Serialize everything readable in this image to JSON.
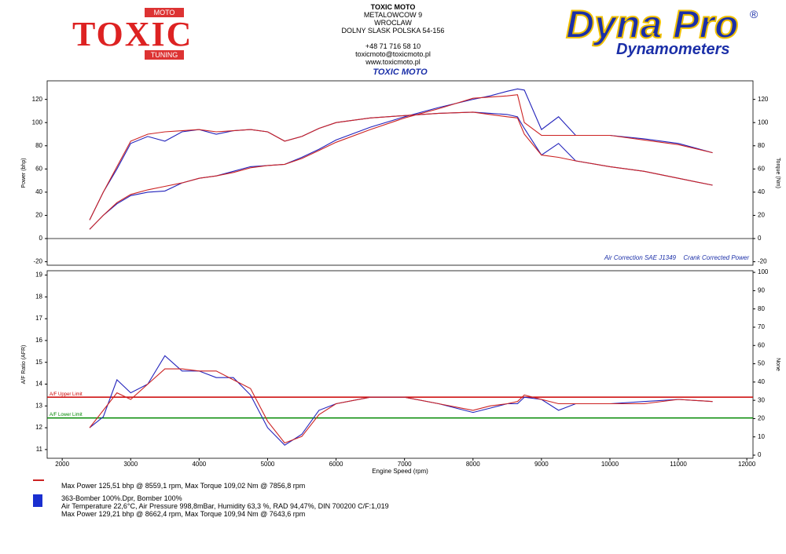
{
  "header": {
    "logo_top": "MOTO",
    "logo_main": "TOXIC",
    "logo_bottom": "TUNING",
    "company": "TOXIC MOTO",
    "address": [
      "METALOWCOW 9",
      "WROCLAW",
      "DOLNY SLASK POLSKA 54-156"
    ],
    "contact": [
      "+48 71 716 58 10",
      "toxicmoto@toxicmoto.pl",
      "www.toxicmoto.pl"
    ],
    "brand": "Dyna Pro",
    "brand_mark": "®",
    "brand_sub": "Dynamometers"
  },
  "chart_data": [
    {
      "type": "line",
      "title": "TOXIC MOTO",
      "y_label": "Power (bhp)",
      "y2_label": "Torque (Nm)",
      "annotations": [
        "Air Correction SAE J1349",
        "Crank Corrected Power"
      ],
      "xlim": [
        1780,
        12090
      ],
      "ylim": [
        -23,
        136
      ],
      "yticks": [
        -20,
        0,
        20,
        40,
        60,
        80,
        100,
        120
      ],
      "y2lim": [
        -23,
        136
      ],
      "y2ticks": [
        -20,
        0,
        20,
        40,
        60,
        80,
        100,
        120
      ],
      "x": [
        2400,
        2600,
        2800,
        3000,
        3250,
        3500,
        3750,
        4000,
        4250,
        4500,
        4750,
        5000,
        5250,
        5500,
        5750,
        6000,
        6500,
        7000,
        7500,
        8000,
        8250,
        8500,
        8650,
        8750,
        9000,
        9250,
        9500,
        10000,
        10500,
        11000,
        11500
      ],
      "series": [
        {
          "color": "#2222bb",
          "values": [
            8,
            20,
            30,
            37,
            40,
            41,
            48,
            52,
            54,
            58,
            62,
            63,
            64,
            70,
            77,
            85,
            96,
            105,
            113,
            120,
            123,
            127,
            129,
            128,
            94,
            105,
            89,
            89,
            86,
            82,
            74
          ]
        },
        {
          "color": "#cc2222",
          "values": [
            8,
            20,
            31,
            38,
            42,
            45,
            48,
            52,
            54,
            57,
            61,
            63,
            64,
            69,
            76,
            83,
            94,
            104,
            112,
            121,
            122,
            123,
            124,
            100,
            89,
            89,
            89,
            89,
            85,
            81,
            74
          ]
        },
        {
          "color": "#2222bb",
          "axis": "y2",
          "values": [
            16,
            40,
            60,
            82,
            88,
            84,
            92,
            94,
            90,
            93,
            94,
            92,
            84,
            88,
            95,
            100,
            104,
            106,
            108,
            109,
            108,
            107,
            105,
            95,
            72,
            82,
            67,
            62,
            58,
            52,
            46
          ]
        },
        {
          "color": "#cc2222",
          "axis": "y2",
          "values": [
            16,
            40,
            62,
            84,
            90,
            92,
            93,
            94,
            92,
            93,
            94,
            92,
            84,
            88,
            95,
            100,
            104,
            106,
            108,
            109,
            107,
            105,
            104,
            90,
            72,
            70,
            67,
            62,
            58,
            52,
            46
          ]
        }
      ]
    },
    {
      "type": "line",
      "x_label": "Engine Speed (rpm)",
      "y_label": "A/F Ratio (AFR)",
      "y2_label": "None",
      "xlim": [
        1780,
        12090
      ],
      "xticks": [
        2000,
        3000,
        4000,
        5000,
        6000,
        7000,
        8000,
        9000,
        10000,
        11000,
        12000
      ],
      "ylim": [
        10.6,
        19.2
      ],
      "yticks": [
        11,
        12,
        13,
        14,
        15,
        16,
        17,
        18,
        19
      ],
      "y2lim": [
        -1.7,
        100.9
      ],
      "y2ticks": [
        0,
        10,
        20,
        30,
        40,
        50,
        60,
        70,
        80,
        90,
        100
      ],
      "limits": [
        {
          "value": 13.4,
          "label": "A/F Upper Limit",
          "color": "#cc0000"
        },
        {
          "value": 12.45,
          "label": "A/F Lower Limit",
          "color": "#008800"
        }
      ],
      "x": [
        2400,
        2600,
        2800,
        3000,
        3250,
        3500,
        3750,
        4000,
        4250,
        4500,
        4750,
        5000,
        5250,
        5500,
        5750,
        6000,
        6500,
        7000,
        7500,
        8000,
        8250,
        8500,
        8650,
        8750,
        9000,
        9250,
        9500,
        10000,
        10500,
        11000,
        11500
      ],
      "series": [
        {
          "color": "#2222bb",
          "values": [
            12.0,
            12.5,
            14.2,
            13.6,
            14.0,
            15.3,
            14.6,
            14.6,
            14.3,
            14.3,
            13.5,
            12.0,
            11.2,
            11.7,
            12.8,
            13.1,
            13.4,
            13.4,
            13.1,
            12.7,
            12.9,
            13.1,
            13.1,
            13.4,
            13.3,
            12.8,
            13.1,
            13.1,
            13.2,
            13.3,
            13.2
          ]
        },
        {
          "color": "#cc2222",
          "values": [
            12.0,
            12.8,
            13.6,
            13.3,
            14.0,
            14.7,
            14.7,
            14.6,
            14.6,
            14.2,
            13.8,
            12.3,
            11.3,
            11.6,
            12.6,
            13.1,
            13.4,
            13.4,
            13.1,
            12.8,
            13.0,
            13.1,
            13.2,
            13.5,
            13.3,
            13.1,
            13.1,
            13.1,
            13.1,
            13.3,
            13.2
          ]
        }
      ]
    }
  ],
  "footer": {
    "run1": [
      "Max Power 125,51 bhp @ 8559,1 rpm, Max Torque 109,02 Nm @ 7856,8 rpm"
    ],
    "run2": [
      "363-Bomber 100%.Dpr,  Bomber 100%",
      "Air Temperature 22,6°C, Air Pressure 998,8mBar, Humidity 63,3 %, RAD 94,47%,   DIN 700200  C/F:1,019",
      "Max Power 129,21 bhp @ 8662,4 rpm, Max Torque 109,94 Nm @ 7643,6 rpm"
    ]
  }
}
